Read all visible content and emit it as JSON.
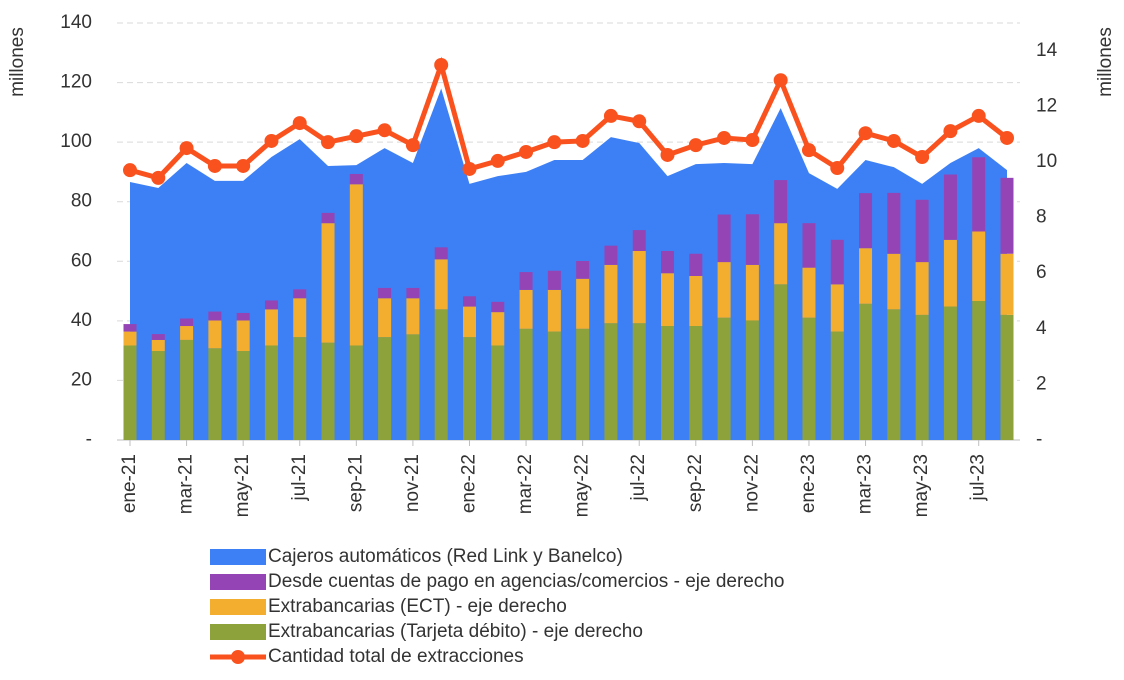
{
  "chart_data": {
    "type": "combo",
    "y_label": "millones",
    "y2_label": "millones",
    "categories": [
      "ene-21",
      null,
      "mar-21",
      null,
      "may-21",
      null,
      "jul-21",
      null,
      "sep-21",
      null,
      "nov-21",
      null,
      "ene-22",
      null,
      "mar-22",
      null,
      "may-22",
      null,
      "jul-22",
      null,
      "sep-22",
      null,
      "nov-22",
      null,
      "ene-23",
      null,
      "mar-23",
      null,
      "may-23",
      null,
      "jul-23",
      null
    ],
    "ylim": [
      0,
      140
    ],
    "yticks": [
      {
        "value": 0,
        "label": "-"
      },
      20,
      40,
      60,
      80,
      100,
      120,
      140
    ],
    "y2lim": [
      0,
      15
    ],
    "y2ticks": [
      {
        "value": 0,
        "label": "-"
      },
      2,
      4,
      6,
      8,
      10,
      12,
      14
    ],
    "grid": true,
    "stacked": true,
    "series": [
      {
        "name": "Cajeros automáticos (Red Link y Banelco)",
        "type": "area",
        "color": "#3d80f5",
        "values": [
          86.6,
          84.6,
          93,
          87,
          87,
          95,
          101,
          92,
          92.3,
          98,
          93,
          118,
          86,
          88.6,
          90,
          94,
          94,
          101.7,
          99.7,
          88.6,
          92.6,
          93,
          92.6,
          111.4,
          89.6,
          84.3,
          94,
          91.6,
          86,
          93,
          98,
          90.6
        ]
      },
      {
        "name": "Desde cuentas de pago en agencias/comercios - eje derecho",
        "type": "bar",
        "axis": "y2",
        "color": "#9444b5",
        "values": [
          0.27,
          0.21,
          0.27,
          0.32,
          0.27,
          0.32,
          0.32,
          0.37,
          0.37,
          0.37,
          0.37,
          0.43,
          0.37,
          0.37,
          0.64,
          0.69,
          0.64,
          0.69,
          0.75,
          0.8,
          0.8,
          1.71,
          1.82,
          1.55,
          1.6,
          1.6,
          1.98,
          2.19,
          2.24,
          2.35,
          2.67,
          2.73
        ]
      },
      {
        "name": "Extrabancarias (ECT) - eje derecho",
        "type": "bar",
        "axis": "y2",
        "color": "#f3ae2f",
        "values": [
          0.5,
          0.4,
          0.5,
          1.0,
          1.1,
          1.3,
          1.4,
          4.3,
          5.8,
          1.4,
          1.3,
          1.8,
          1.1,
          1.2,
          1.4,
          1.5,
          1.8,
          2.1,
          2.6,
          1.9,
          1.8,
          2.0,
          2.0,
          2.2,
          1.8,
          1.7,
          2.0,
          2.0,
          1.9,
          2.4,
          2.5,
          2.2
        ]
      },
      {
        "name": "Extrabancarias (Tarjeta débito) - eje derecho",
        "type": "bar",
        "axis": "y2",
        "color": "#8da23a",
        "values": [
          3.4,
          3.2,
          3.6,
          3.3,
          3.2,
          3.4,
          3.7,
          3.5,
          3.4,
          3.7,
          3.8,
          4.7,
          3.7,
          3.4,
          4.0,
          3.9,
          4.0,
          4.2,
          4.2,
          4.1,
          4.1,
          4.4,
          4.3,
          5.6,
          4.4,
          3.9,
          4.9,
          4.7,
          4.5,
          4.8,
          5.0,
          4.5
        ]
      },
      {
        "name": "Cantidad total de extracciones",
        "type": "line",
        "color": "#f9521e",
        "values": [
          90.6,
          88,
          98,
          92,
          92,
          100.4,
          106.4,
          100,
          102,
          104,
          99,
          125.9,
          91,
          93.7,
          96.7,
          100,
          100.4,
          108.8,
          107,
          95.7,
          99,
          101.4,
          100.7,
          120.8,
          97.3,
          91.3,
          103,
          100.4,
          95,
          103.7,
          108.8,
          101.4
        ]
      }
    ]
  }
}
